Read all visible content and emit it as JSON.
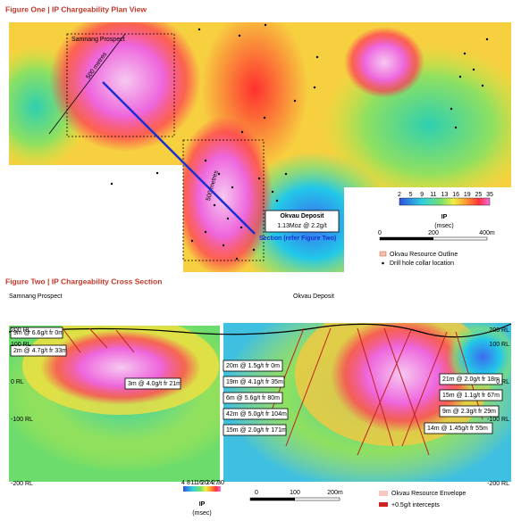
{
  "figure_one": {
    "title": "Figure One | IP Chargeability Plan View",
    "prospect": "Samnang Prospect",
    "scale_label_1": "500 metres",
    "scale_label_2": "500 metres",
    "deposit": "Okvau Deposit",
    "resource": "1.13Moz @ 2.2g/t",
    "section": "Section (refer Figure Two)",
    "legend": {
      "ticks": [
        2,
        5,
        9,
        11,
        13,
        16,
        19,
        25,
        35
      ],
      "unit": "IP",
      "unit_sub": "(msec)",
      "scale": [
        "0",
        "200",
        "400m"
      ],
      "outline": "Okvau Resource Outline",
      "collar": "Drill hole collar location"
    }
  },
  "figure_two": {
    "title": "Figure Two | IP Chargeability Cross Section",
    "left_title": "Samnang Prospect",
    "right_title": "Okvau Deposit",
    "rl_left": [
      "200 RL",
      "100 RL",
      "0 RL",
      "-100 RL",
      "-200 RL"
    ],
    "rl_right": [
      "200 RL",
      "100 RL",
      "0 RL",
      "-100 RL",
      "-200 RL"
    ],
    "intercepts": [
      "9m @ 6.6g/t fr 0m",
      "2m @ 4.7g/t fr 33m",
      "3m @ 4.0g/t fr 21m",
      "20m @ 1.5g/t fr 0m",
      "19m @ 4.1g/t fr 35m",
      "6m @ 5.6g/t fr 80m",
      "42m @ 5.0g/t fr 104m",
      "15m @ 2.0g/t fr 171m",
      "21m @ 2.0g/t fr 18m",
      "15m @ 1.1g/t fr 67m",
      "9m @ 2.3g/t fr 29m",
      "14m @ 1.45g/t fr 55m"
    ],
    "legend": {
      "ticks": [
        4,
        8,
        11,
        16,
        20,
        24,
        27,
        30
      ],
      "unit": "IP",
      "unit_sub": "(msec)",
      "scale": [
        "0",
        "100",
        "200m"
      ],
      "envelope": "Okvau Resource Envelope",
      "intercepts": "+0.5g/t intercepts"
    }
  }
}
